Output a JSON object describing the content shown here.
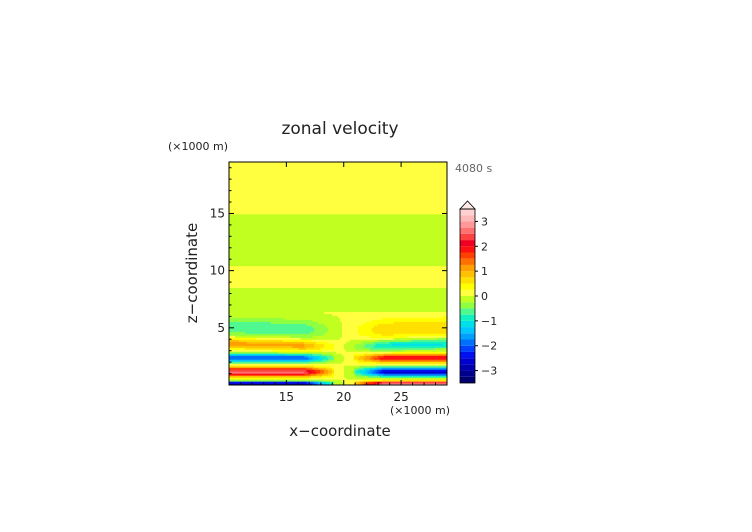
{
  "chart_data": {
    "type": "heatmap",
    "title": "zonal velocity",
    "time_label": "4080 s",
    "xlabel": "x−coordinate",
    "ylabel": "z−coordinate",
    "x_unit": "(×1000 m)",
    "y_unit": "(×1000 m)",
    "xlim": [
      10,
      29
    ],
    "ylim": [
      0,
      19.5
    ],
    "x_ticks": [
      15,
      20,
      25
    ],
    "x_tick_labels": [
      "15",
      "20",
      "25"
    ],
    "y_ticks": [
      5,
      10,
      15
    ],
    "y_tick_labels": [
      "5",
      "10",
      "15"
    ],
    "colorbar": {
      "levels": [
        -3.5,
        -3.25,
        -3,
        -2.75,
        -2.5,
        -2.25,
        -2,
        -1.75,
        -1.5,
        -1.25,
        -1,
        -0.75,
        -0.5,
        -0.25,
        0,
        0.25,
        0.5,
        0.75,
        1,
        1.25,
        1.5,
        1.75,
        2,
        2.25,
        2.5,
        2.75,
        3,
        3.25,
        3.5
      ],
      "colors": [
        "#000070",
        "#00008f",
        "#0000b0",
        "#0000d0",
        "#0010ee",
        "#0040ff",
        "#0070ff",
        "#00a0ff",
        "#00c8ff",
        "#00e0e8",
        "#10f0c0",
        "#50f890",
        "#90ff40",
        "#c0ff20",
        "#ffff40",
        "#ffff00",
        "#ffe000",
        "#ffc000",
        "#ffa000",
        "#ff7000",
        "#ff4000",
        "#ff1010",
        "#f00020",
        "#ff4040",
        "#ff7070",
        "#ff9898",
        "#ffb8b8",
        "#ffd0d0"
      ],
      "tick_values": [
        -3,
        -2,
        -1,
        0,
        1,
        2,
        3
      ],
      "tick_labels": [
        "−3",
        "−2",
        "−1",
        "0",
        "1",
        "2",
        "3"
      ],
      "extend_max": true
    },
    "description_note": ""
  }
}
